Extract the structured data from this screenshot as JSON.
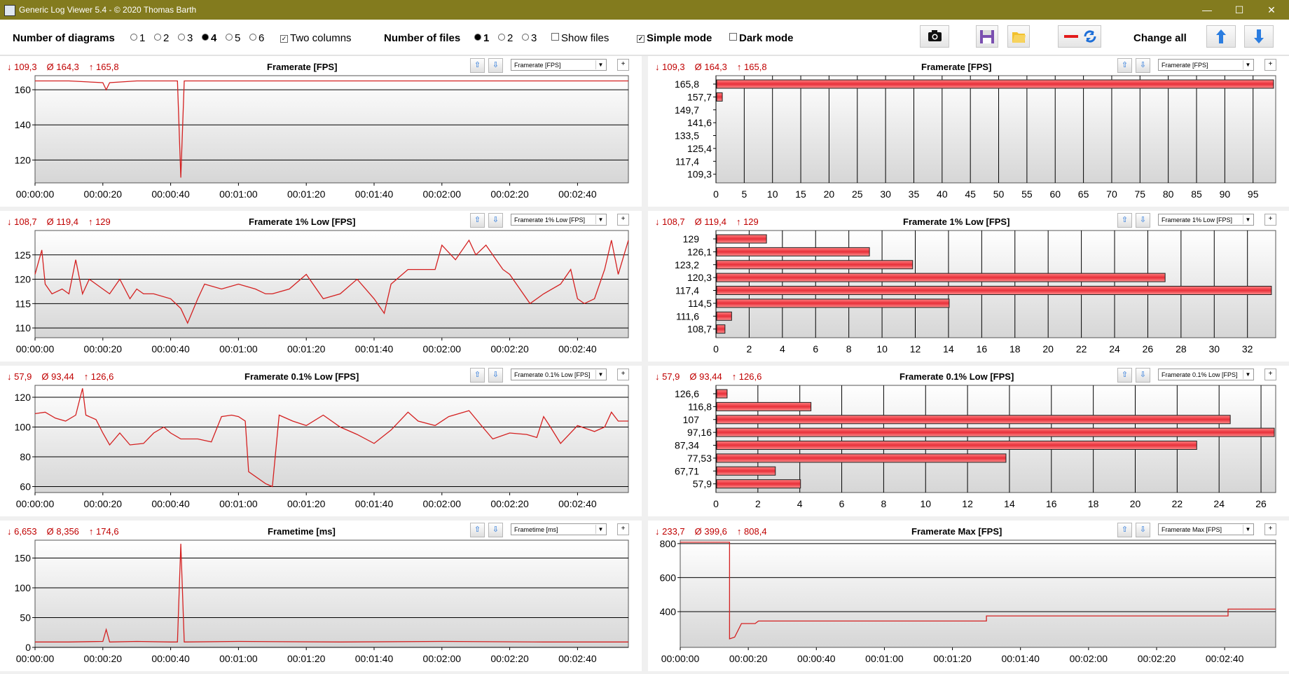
{
  "window": {
    "title": "Generic Log Viewer 5.4 - © 2020 Thomas Barth"
  },
  "toolbar": {
    "num_diagrams_label": "Number of diagrams",
    "diagram_options": [
      "1",
      "2",
      "3",
      "4",
      "5",
      "6"
    ],
    "diagram_selected": "4",
    "two_columns_label": "Two columns",
    "two_columns_checked": true,
    "num_files_label": "Number of files",
    "file_options": [
      "1",
      "2",
      "3"
    ],
    "file_selected": "1",
    "show_files_label": "Show files",
    "show_files_checked": false,
    "simple_mode_label": "Simple mode",
    "simple_mode_checked": true,
    "dark_mode_label": "Dark mode",
    "dark_mode_checked": false,
    "change_all_label": "Change all"
  },
  "colors": {
    "line": "#d42020",
    "stat": "#c00000",
    "bar_light": "#ff8080",
    "bar_dark": "#e8303a",
    "title_bar": "#837b1e"
  },
  "panels": [
    {
      "title": "Framerate [FPS]",
      "select": "Framerate [FPS]",
      "stats": [
        "↓ 109,3",
        "Ø 164,3",
        "↑ 165,8"
      ]
    },
    {
      "title": "Framerate [FPS]",
      "select": "Framerate [FPS]",
      "stats": [
        "↓ 109,3",
        "Ø 164,3",
        "↑ 165,8"
      ]
    },
    {
      "title": "Framerate 1% Low [FPS]",
      "select": "Framerate 1% Low [FPS]",
      "stats": [
        "↓ 108,7",
        "Ø 119,4",
        "↑ 129"
      ]
    },
    {
      "title": "Framerate 1% Low [FPS]",
      "select": "Framerate 1% Low [FPS]",
      "stats": [
        "↓ 108,7",
        "Ø 119,4",
        "↑ 129"
      ]
    },
    {
      "title": "Framerate 0.1% Low [FPS]",
      "select": "Framerate 0.1% Low [FPS]",
      "stats": [
        "↓ 57,9",
        "Ø 93,44",
        "↑ 126,6"
      ]
    },
    {
      "title": "Framerate 0.1% Low [FPS]",
      "select": "Framerate 0.1% Low [FPS]",
      "stats": [
        "↓ 57,9",
        "Ø 93,44",
        "↑ 126,6"
      ]
    },
    {
      "title": "Frametime [ms]",
      "select": "Frametime [ms]",
      "stats": [
        "↓ 6,653",
        "Ø 8,356",
        "↑ 174,6"
      ]
    },
    {
      "title": "Framerate Max [FPS]",
      "select": "Framerate Max [FPS]",
      "stats": [
        "↓ 233,7",
        "Ø 399,6",
        "↑ 808,4"
      ]
    }
  ],
  "chart_data": [
    {
      "type": "line",
      "series": [
        {
          "values": [
            [
              0,
              165
            ],
            [
              10,
              165
            ],
            [
              20,
              164
            ],
            [
              21,
              160
            ],
            [
              22,
              164
            ],
            [
              30,
              165
            ],
            [
              40,
              165
            ],
            [
              42,
              165
            ],
            [
              43,
              110
            ],
            [
              44,
              165
            ],
            [
              60,
              165
            ],
            [
              90,
              165
            ],
            [
              120,
              165
            ],
            [
              150,
              165
            ],
            [
              175,
              165
            ]
          ]
        }
      ],
      "xlim": [
        0,
        175
      ],
      "ylim": [
        107,
        168
      ],
      "yticks": [
        120,
        140,
        160
      ],
      "xticks": [
        "00:00:00",
        "00:00:20",
        "00:00:40",
        "00:01:00",
        "00:01:20",
        "00:01:40",
        "00:02:00",
        "00:02:20",
        "00:02:40"
      ]
    },
    {
      "type": "bar",
      "orientation": "horizontal",
      "categories": [
        "165,8",
        "157,7",
        "149,7",
        "141,6",
        "133,5",
        "125,4",
        "117,4",
        "109,3"
      ],
      "values": [
        98.5,
        1.0,
        0,
        0,
        0,
        0,
        0,
        0
      ],
      "xlim": [
        0,
        99
      ],
      "xticks": [
        0,
        5,
        10,
        15,
        20,
        25,
        30,
        35,
        40,
        45,
        50,
        55,
        60,
        65,
        70,
        75,
        80,
        85,
        90,
        95
      ]
    },
    {
      "type": "line",
      "series": [
        {
          "values": [
            [
              0,
              121
            ],
            [
              2,
              126
            ],
            [
              3,
              119
            ],
            [
              5,
              117
            ],
            [
              8,
              118
            ],
            [
              10,
              117
            ],
            [
              12,
              124
            ],
            [
              14,
              117
            ],
            [
              16,
              120
            ],
            [
              18,
              119
            ],
            [
              20,
              118
            ],
            [
              22,
              117
            ],
            [
              25,
              120
            ],
            [
              28,
              116
            ],
            [
              30,
              118
            ],
            [
              32,
              117
            ],
            [
              35,
              117
            ],
            [
              40,
              116
            ],
            [
              43,
              114
            ],
            [
              45,
              111
            ],
            [
              48,
              116
            ],
            [
              50,
              119
            ],
            [
              55,
              118
            ],
            [
              60,
              119
            ],
            [
              65,
              118
            ],
            [
              68,
              117
            ],
            [
              70,
              117
            ],
            [
              75,
              118
            ],
            [
              80,
              121
            ],
            [
              85,
              116
            ],
            [
              90,
              117
            ],
            [
              95,
              120
            ],
            [
              100,
              116
            ],
            [
              103,
              113
            ],
            [
              105,
              119
            ],
            [
              110,
              122
            ],
            [
              115,
              122
            ],
            [
              118,
              122
            ],
            [
              120,
              127
            ],
            [
              124,
              124
            ],
            [
              128,
              128
            ],
            [
              130,
              125
            ],
            [
              133,
              127
            ],
            [
              138,
              122
            ],
            [
              140,
              121
            ],
            [
              143,
              118
            ],
            [
              146,
              115
            ],
            [
              150,
              117
            ],
            [
              155,
              119
            ],
            [
              158,
              122
            ],
            [
              160,
              116
            ],
            [
              162,
              115
            ],
            [
              165,
              116
            ],
            [
              168,
              122
            ],
            [
              170,
              128
            ],
            [
              172,
              121
            ],
            [
              175,
              128
            ]
          ]
        }
      ],
      "xlim": [
        0,
        175
      ],
      "ylim": [
        108,
        130
      ],
      "yticks": [
        110,
        115,
        120,
        125
      ],
      "xticks": [
        "00:00:00",
        "00:00:20",
        "00:00:40",
        "00:01:00",
        "00:01:20",
        "00:01:40",
        "00:02:00",
        "00:02:20",
        "00:02:40"
      ]
    },
    {
      "type": "bar",
      "orientation": "horizontal",
      "categories": [
        "129",
        "126,1",
        "123,2",
        "120,3",
        "117,4",
        "114,5",
        "111,6",
        "108,7"
      ],
      "values": [
        3,
        9.2,
        11.8,
        27,
        33.4,
        14,
        0.9,
        0.5
      ],
      "xlim": [
        0,
        33.7
      ],
      "xticks": [
        0,
        2,
        4,
        6,
        8,
        10,
        12,
        14,
        16,
        18,
        20,
        22,
        24,
        26,
        28,
        30,
        32
      ]
    },
    {
      "type": "line",
      "series": [
        {
          "values": [
            [
              0,
              109
            ],
            [
              3,
              110
            ],
            [
              6,
              106
            ],
            [
              9,
              104
            ],
            [
              12,
              108
            ],
            [
              14,
              126
            ],
            [
              15,
              108
            ],
            [
              18,
              105
            ],
            [
              20,
              96
            ],
            [
              22,
              88
            ],
            [
              25,
              96
            ],
            [
              28,
              88
            ],
            [
              32,
              89
            ],
            [
              35,
              96
            ],
            [
              38,
              100
            ],
            [
              40,
              96
            ],
            [
              43,
              92
            ],
            [
              48,
              92
            ],
            [
              52,
              90
            ],
            [
              55,
              107
            ],
            [
              58,
              108
            ],
            [
              60,
              107
            ],
            [
              62,
              104
            ],
            [
              63,
              70
            ],
            [
              68,
              62
            ],
            [
              70,
              60
            ],
            [
              72,
              108
            ],
            [
              76,
              104
            ],
            [
              80,
              101
            ],
            [
              85,
              108
            ],
            [
              90,
              100
            ],
            [
              95,
              95
            ],
            [
              100,
              89
            ],
            [
              105,
              98
            ],
            [
              110,
              110
            ],
            [
              113,
              104
            ],
            [
              118,
              101
            ],
            [
              122,
              107
            ],
            [
              128,
              111
            ],
            [
              132,
              100
            ],
            [
              135,
              92
            ],
            [
              140,
              96
            ],
            [
              145,
              95
            ],
            [
              148,
              93
            ],
            [
              150,
              107
            ],
            [
              152,
              100
            ],
            [
              155,
              89
            ],
            [
              160,
              101
            ],
            [
              165,
              97
            ],
            [
              168,
              100
            ],
            [
              170,
              110
            ],
            [
              172,
              104
            ],
            [
              175,
              104
            ]
          ]
        }
      ],
      "xlim": [
        0,
        175
      ],
      "ylim": [
        56,
        128
      ],
      "yticks": [
        60,
        80,
        100,
        120
      ],
      "xticks": [
        "00:00:00",
        "00:00:20",
        "00:00:40",
        "00:01:00",
        "00:01:20",
        "00:01:40",
        "00:02:00",
        "00:02:20",
        "00:02:40"
      ]
    },
    {
      "type": "bar",
      "orientation": "horizontal",
      "categories": [
        "126,6",
        "116,8",
        "107",
        "97,16",
        "87,34",
        "77,53",
        "67,71",
        "57,9"
      ],
      "values": [
        0.5,
        4.5,
        24.5,
        26.6,
        22.9,
        13.8,
        2.8,
        4
      ],
      "xlim": [
        0,
        26.7
      ],
      "xticks": [
        0,
        2,
        4,
        6,
        8,
        10,
        12,
        14,
        16,
        18,
        20,
        22,
        24,
        26
      ]
    },
    {
      "type": "line",
      "series": [
        {
          "values": [
            [
              0,
              9
            ],
            [
              10,
              9
            ],
            [
              20,
              10
            ],
            [
              21,
              30
            ],
            [
              22,
              9
            ],
            [
              30,
              10
            ],
            [
              40,
              9
            ],
            [
              42,
              9
            ],
            [
              43,
              174
            ],
            [
              44,
              9
            ],
            [
              60,
              10
            ],
            [
              90,
              9
            ],
            [
              120,
              10
            ],
            [
              150,
              9
            ],
            [
              175,
              9
            ]
          ]
        }
      ],
      "xlim": [
        0,
        175
      ],
      "ylim": [
        0,
        180
      ],
      "yticks": [
        0,
        50,
        100,
        150
      ],
      "xticks": [
        "00:00:00",
        "00:00:20",
        "00:00:40",
        "00:01:00",
        "00:01:20",
        "00:01:40",
        "00:02:00",
        "00:02:20",
        "00:02:40"
      ]
    },
    {
      "type": "line",
      "series": [
        {
          "values": [
            [
              0,
              808
            ],
            [
              14.5,
              808
            ],
            [
              14.5,
              240
            ],
            [
              16,
              250
            ],
            [
              18,
              330
            ],
            [
              22,
              330
            ],
            [
              23,
              345
            ],
            [
              90,
              345
            ],
            [
              90,
              375
            ],
            [
              161,
              375
            ],
            [
              161,
              415
            ],
            [
              175,
              415
            ]
          ]
        }
      ],
      "xlim": [
        0,
        175
      ],
      "ylim": [
        190,
        820
      ],
      "yticks": [
        400,
        600,
        800
      ],
      "xticks": [
        "00:00:00",
        "00:00:20",
        "00:00:40",
        "00:01:00",
        "00:01:20",
        "00:01:40",
        "00:02:00",
        "00:02:20",
        "00:02:40"
      ]
    }
  ]
}
